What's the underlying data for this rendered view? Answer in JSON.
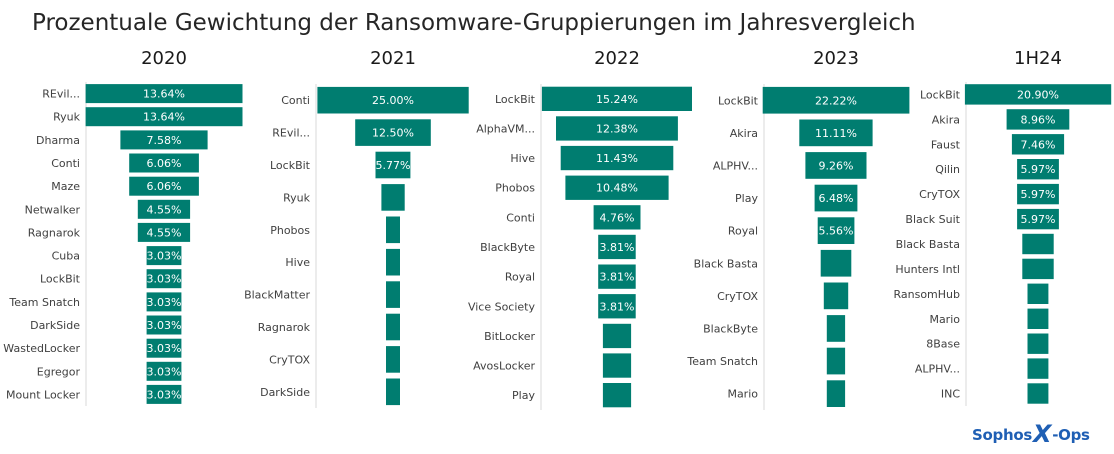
{
  "title": "Prozentuale Gewichtung der Ransomware-Gruppierungen im Jahresvergleich",
  "logo": {
    "name": "Sophos",
    "mark": "X",
    "suffix": "-Ops"
  },
  "colors": {
    "bar": "#007D70",
    "axis": "#d9d9d9"
  },
  "chart_data": [
    {
      "type": "bar",
      "orientation": "horizontal-centered",
      "title": "2020",
      "categories": [
        "REvil...",
        "Ryuk",
        "Dharma",
        "Conti",
        "Maze",
        "Netwalker",
        "Ragnarok",
        "Cuba",
        "LockBit",
        "Team Snatch",
        "DarkSide",
        "WastedLocker",
        "Egregor",
        "Mount Locker"
      ],
      "values": [
        13.64,
        13.64,
        7.58,
        6.06,
        6.06,
        4.55,
        4.55,
        3.03,
        3.03,
        3.03,
        3.03,
        3.03,
        3.03,
        3.03
      ],
      "labels": [
        "13.64%",
        "13.64%",
        "7.58%",
        "6.06%",
        "6.06%",
        "4.55%",
        "4.55%",
        "3.03%",
        "3.03%",
        "3.03%",
        "3.03%",
        "3.03%",
        "3.03%",
        "3.03%"
      ]
    },
    {
      "type": "bar",
      "orientation": "horizontal-centered",
      "title": "2021",
      "categories": [
        "Conti",
        "REvil...",
        "LockBit",
        "Ryuk",
        "Phobos",
        "Hive",
        "BlackMatter",
        "Ragnarok",
        "CryTOX",
        "DarkSide"
      ],
      "values": [
        25.0,
        12.5,
        5.77,
        3.85,
        1.92,
        1.92,
        1.92,
        1.92,
        1.92,
        1.92
      ],
      "labels": [
        "25.00%",
        "12.50%",
        "5.77%",
        "",
        "",
        "",
        "",
        "",
        "",
        ""
      ]
    },
    {
      "type": "bar",
      "orientation": "horizontal-centered",
      "title": "2022",
      "categories": [
        "LockBit",
        "AlphaVM...",
        "Hive",
        "Phobos",
        "Conti",
        "BlackByte",
        "Royal",
        "Vice Society",
        "BitLocker",
        "AvosLocker",
        "Play"
      ],
      "values": [
        15.24,
        12.38,
        11.43,
        10.48,
        4.76,
        3.81,
        3.81,
        3.81,
        2.86,
        2.86,
        2.86
      ],
      "labels": [
        "15.24%",
        "12.38%",
        "11.43%",
        "10.48%",
        "4.76%",
        "3.81%",
        "3.81%",
        "3.81%",
        "",
        "",
        ""
      ]
    },
    {
      "type": "bar",
      "orientation": "horizontal-centered",
      "title": "2023",
      "categories": [
        "LockBit",
        "Akira",
        "ALPHV...",
        "Play",
        "Royal",
        "Black Basta",
        "CryTOX",
        "BlackByte",
        "Team Snatch",
        "Mario"
      ],
      "values": [
        22.22,
        11.11,
        9.26,
        6.48,
        5.56,
        4.63,
        3.7,
        2.78,
        2.78,
        2.78
      ],
      "labels": [
        "22.22%",
        "11.11%",
        "9.26%",
        "6.48%",
        "5.56%",
        "",
        "",
        "",
        "",
        ""
      ]
    },
    {
      "type": "bar",
      "orientation": "horizontal-centered",
      "title": "1H24",
      "categories": [
        "LockBit",
        "Akira",
        "Faust",
        "Qilin",
        "CryTOX",
        "Black Suit",
        "Black Basta",
        "Hunters Intl",
        "RansomHub",
        "Mario",
        "8Base",
        "ALPHV...",
        "INC"
      ],
      "values": [
        20.9,
        8.96,
        7.46,
        5.97,
        5.97,
        5.97,
        4.48,
        4.48,
        2.99,
        2.99,
        2.99,
        2.99,
        2.99
      ],
      "labels": [
        "20.90%",
        "8.96%",
        "7.46%",
        "5.97%",
        "5.97%",
        "5.97%",
        "",
        "",
        "",
        "",
        "",
        "",
        ""
      ]
    }
  ]
}
